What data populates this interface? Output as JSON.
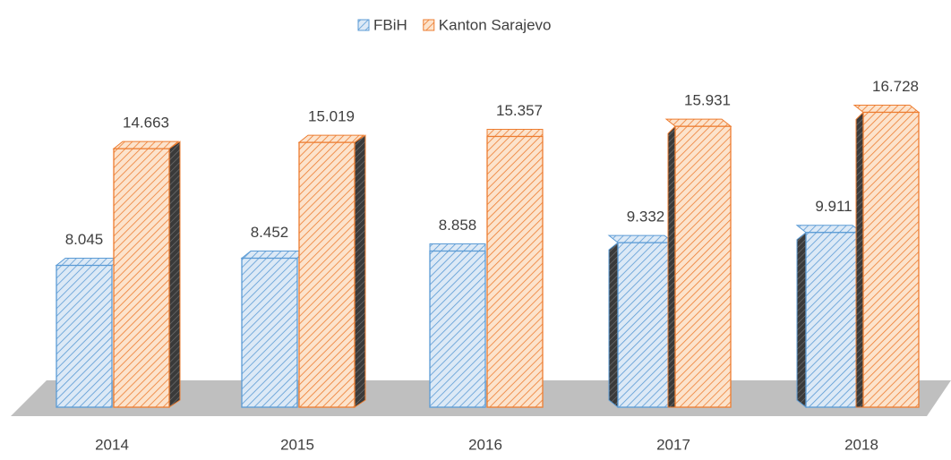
{
  "chart_data": {
    "type": "bar3d",
    "categories": [
      "2014",
      "2015",
      "2016",
      "2017",
      "2018"
    ],
    "series": [
      {
        "name": "FBiH",
        "color": "#5b9bd5",
        "values": [
          8.045,
          8.452,
          8.858,
          9.332,
          9.911
        ]
      },
      {
        "name": "Kanton Sarajevo",
        "color": "#ed7d31",
        "values": [
          14.663,
          15.019,
          15.357,
          15.931,
          16.728
        ]
      }
    ],
    "legend": "top"
  }
}
